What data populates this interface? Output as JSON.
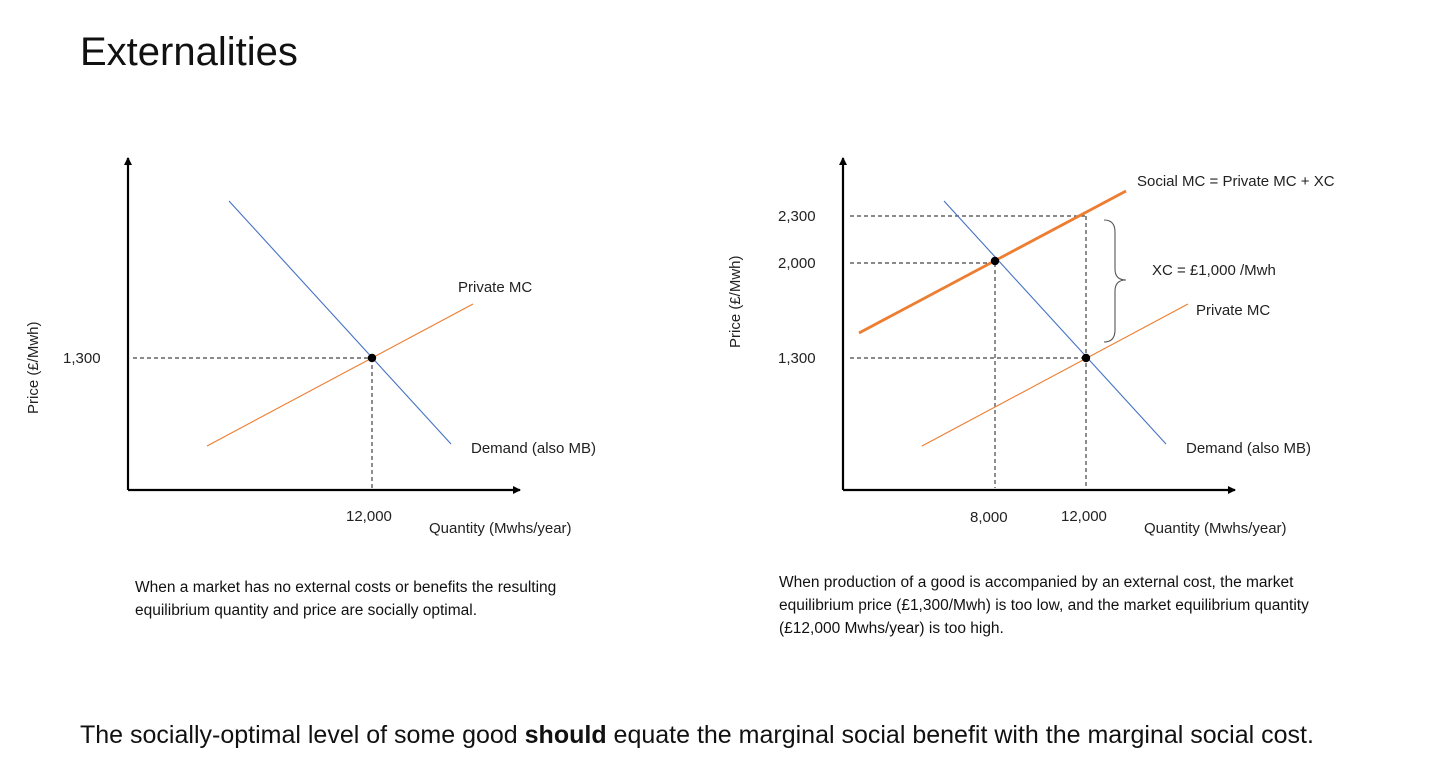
{
  "slide": {
    "title": "Externalities",
    "footer": {
      "before": "The socially-optimal level of some good ",
      "bold": "should",
      "after": " equate the marginal social benefit with the marginal social cost."
    }
  },
  "chart_data": [
    {
      "type": "line",
      "ylabel": "Price (£/Mwh)",
      "xlabel": "Quantity (Mwhs/year)",
      "series": [
        {
          "name": "Private MC",
          "color": "#ed7d31"
        },
        {
          "name": "Demand (also MB)",
          "color": "#4472c4"
        }
      ],
      "ticks": {
        "price": "1,300",
        "quantity": "12,000"
      },
      "equilibrium": {
        "x": 12000,
        "y": 1300
      },
      "caption": "When a market has no external costs or benefits the resulting equilibrium quantity and price are socially optimal."
    },
    {
      "type": "line",
      "ylabel": "Price (£/Mwh)",
      "xlabel": "Quantity (Mwhs/year)",
      "series": [
        {
          "name": "Social MC = Private MC + XC",
          "color": "#ed7d31"
        },
        {
          "name": "Private MC",
          "color": "#ed7d31"
        },
        {
          "name": "Demand (also MB)",
          "color": "#4472c4"
        }
      ],
      "ticks": {
        "price_high": "2,300",
        "price_opt": "2,000",
        "price_mkt": "1,300",
        "q_opt": "8,000",
        "q_mkt": "12,000"
      },
      "bracket_label": "XC = £1,000 /Mwh",
      "points": [
        {
          "x": 8000,
          "y": 2000
        },
        {
          "x": 12000,
          "y": 1300
        }
      ],
      "caption": "When production of a good is accompanied by an external cost, the market equilibrium price (£1,300/Mwh) is too low, and the market equilibrium quantity (£12,000 Mwhs/year) is too high."
    }
  ]
}
